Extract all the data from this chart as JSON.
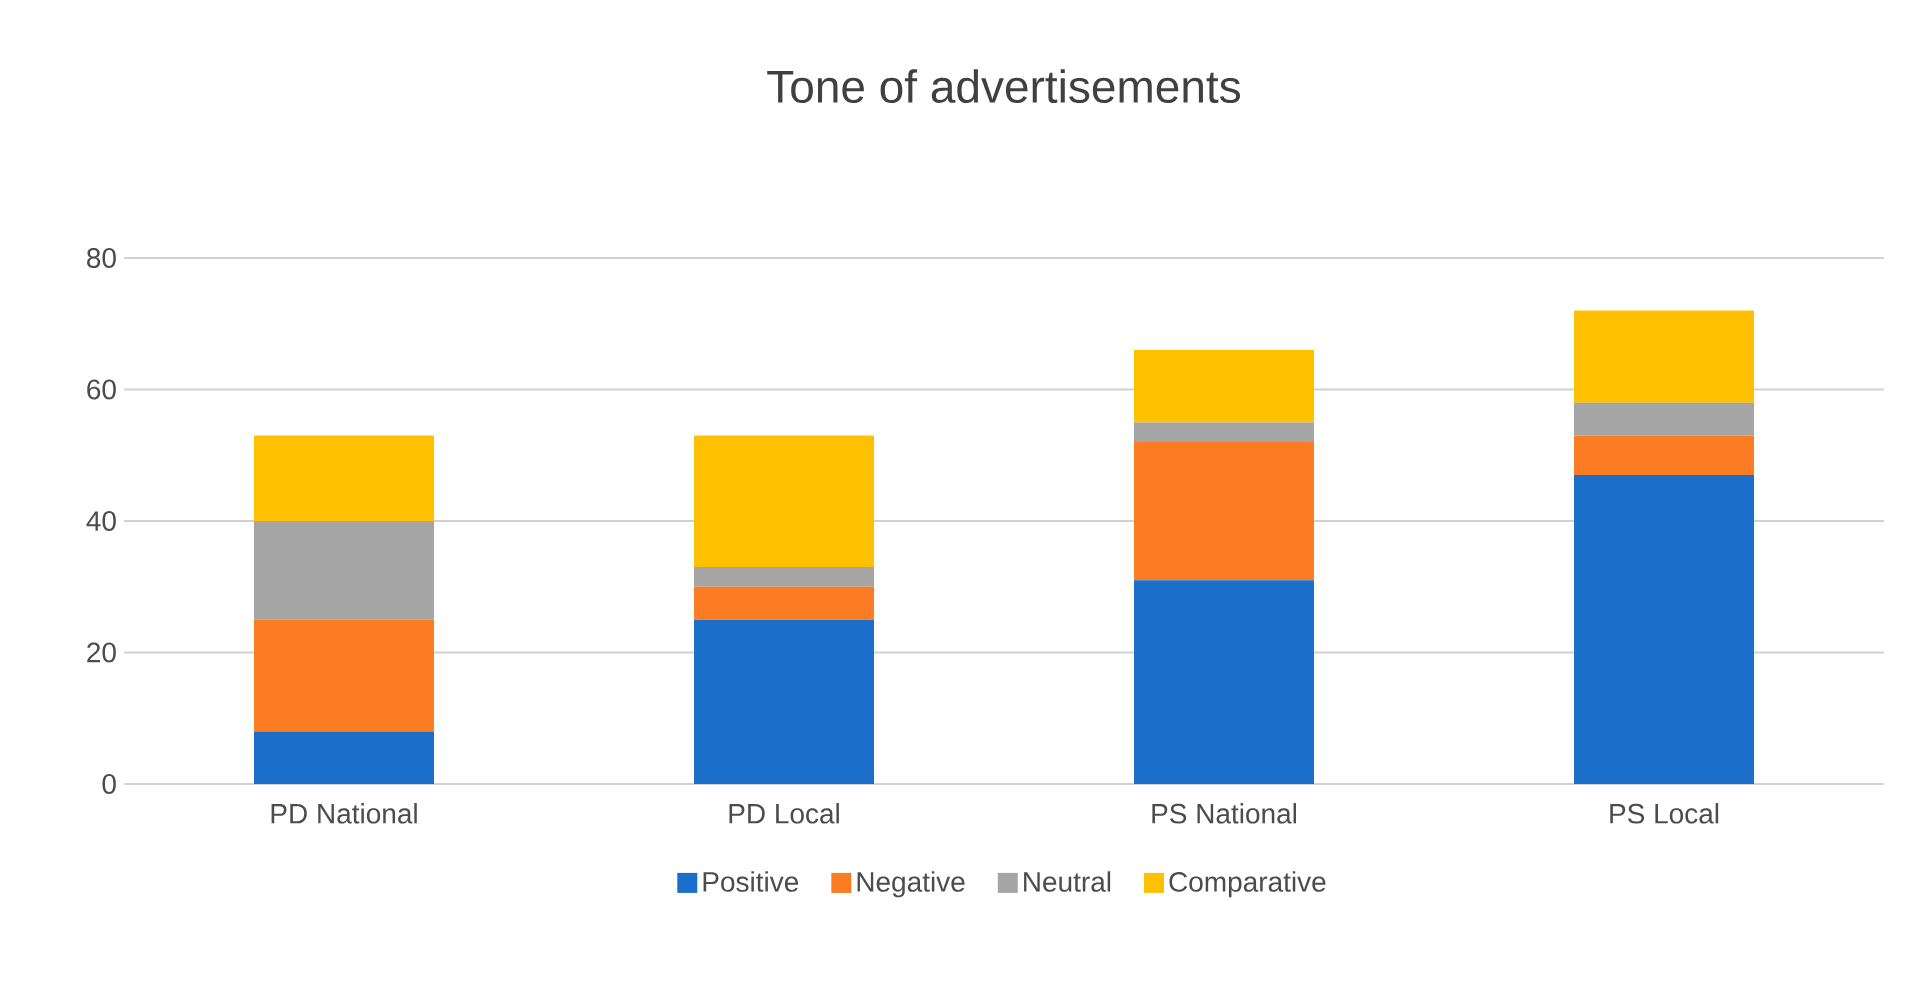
{
  "chart_data": {
    "type": "bar",
    "title": "Tone of advertisements",
    "stacked": true,
    "categories": [
      "PD National",
      "PD Local",
      "PS National",
      "PS Local"
    ],
    "series": [
      {
        "name": "Positive",
        "color": "#1b6fca",
        "values": [
          8,
          25,
          31,
          47
        ]
      },
      {
        "name": "Negative",
        "color": "#fc7c24",
        "values": [
          17,
          5,
          21,
          6
        ]
      },
      {
        "name": "Neutral",
        "color": "#a5a5a5",
        "values": [
          15,
          3,
          3,
          5
        ]
      },
      {
        "name": "Comparative",
        "color": "#ffc000",
        "values": [
          13,
          20,
          11,
          14
        ]
      }
    ],
    "ylim": [
      0,
      80
    ],
    "yticks": [
      0,
      20,
      40,
      60,
      80
    ],
    "grid": "y",
    "legend": "bottom"
  }
}
